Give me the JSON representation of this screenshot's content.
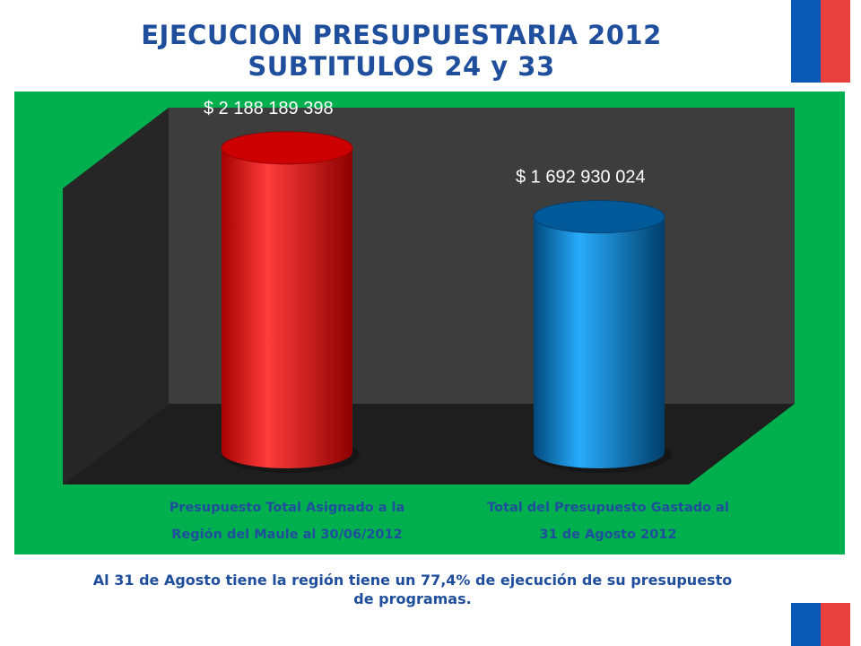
{
  "header": {
    "title_line1": "EJECUCION PRESUPUESTARIA 2012",
    "title_line2": "SUBTITULOS 24 y 33"
  },
  "colors": {
    "title": "#1f4e9c",
    "panel_background": "#00b04f",
    "chart_wall": "#3d3d3d",
    "bar_1": "#ff0000",
    "bar_2": "#0070c0",
    "flag_blue": "#0a58b6",
    "flag_red": "#e8403f"
  },
  "chart_data": {
    "type": "bar",
    "style": "3d-cylinder",
    "categories": [
      "Presupuesto Total Asignado a la Región del Maule al 30/06/2012",
      "Total del Presupuesto Gastado al 31 de Agosto 2012"
    ],
    "category_lines": [
      [
        "Presupuesto Total Asignado a la",
        "Región del Maule al 30/06/2012"
      ],
      [
        "Total del Presupuesto Gastado al",
        "31 de Agosto 2012"
      ]
    ],
    "values": [
      2188189398,
      1692930024
    ],
    "data_labels": [
      "$ 2 188 189 398",
      "$ 1 692 930 024"
    ],
    "ylim": [
      0,
      2400000000
    ],
    "grid": false,
    "legend": "none"
  },
  "footer": {
    "caption_line1": "Al 31 de Agosto tiene la región tiene un 77,4% de ejecución de su presupuesto",
    "caption_line2": "de programas."
  }
}
